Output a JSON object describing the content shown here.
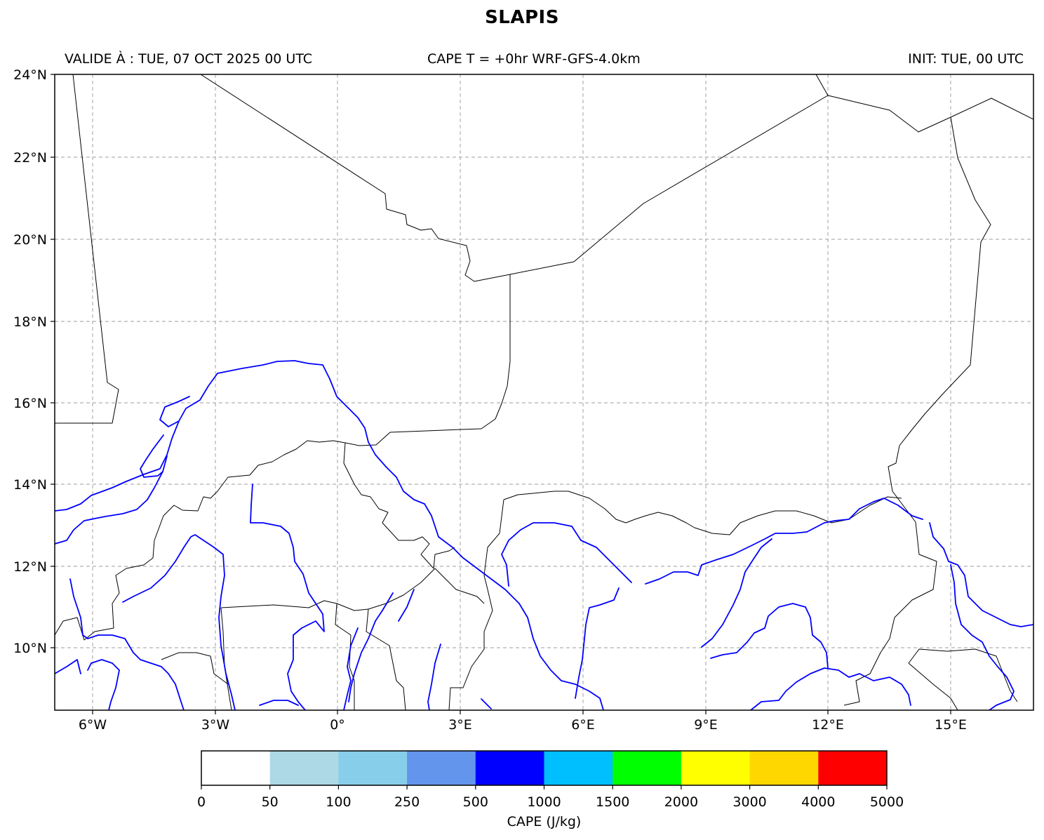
{
  "title": "SLAPIS",
  "header": {
    "valid": "VALIDE À : TUE, 07 OCT 2025 00 UTC",
    "field": "CAPE T = +0hr WRF-GFS-4.0km",
    "init": "INIT: TUE, 00 UTC"
  },
  "map": {
    "lat_ticks": [
      "24°N",
      "22°N",
      "20°N",
      "18°N",
      "16°N",
      "14°N",
      "12°N",
      "10°N"
    ],
    "lon_ticks": [
      "6°W",
      "3°W",
      "0°",
      "3°E",
      "6°E",
      "9°E",
      "12°E",
      "15°E"
    ],
    "lon_range": [
      -6.92,
      16.98
    ],
    "lat_range": [
      8.47,
      24.0
    ],
    "grid": true,
    "colors": {
      "border": "#000000",
      "river": "#0000ff",
      "grid": "#b0b0b0"
    }
  },
  "colorbar": {
    "label": "CAPE (J/kg)",
    "levels": [
      "0",
      "50",
      "100",
      "250",
      "500",
      "1000",
      "1500",
      "2000",
      "3000",
      "4000",
      "5000"
    ],
    "colors": [
      "#ffffff",
      "#add8e6",
      "#87ceeb",
      "#6495ed",
      "#0000ff",
      "#00bfff",
      "#00ff00",
      "#ffff00",
      "#ffd700",
      "#ff0000"
    ]
  }
}
